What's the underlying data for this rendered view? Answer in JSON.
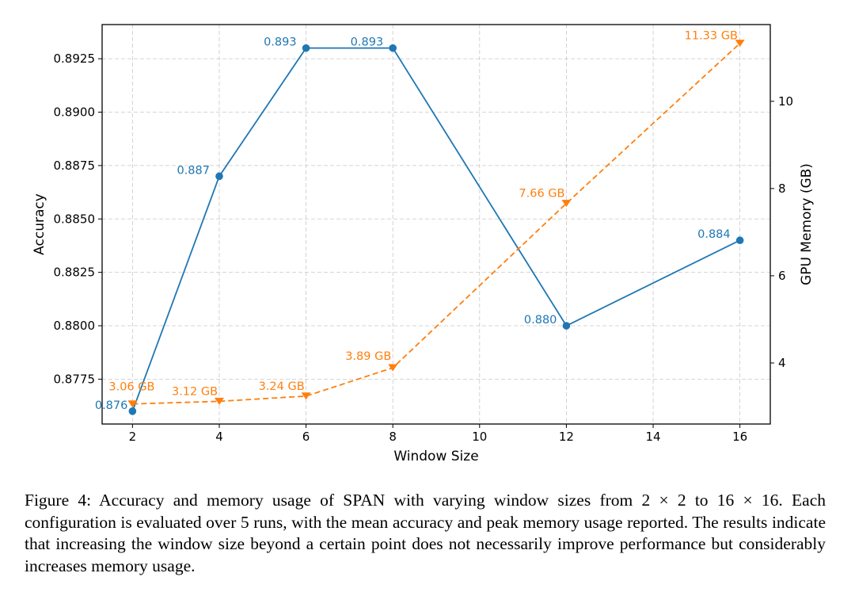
{
  "chart_data": {
    "type": "line",
    "xlabel": "Window Size",
    "ylabel_left": "Accuracy",
    "ylabel_right": "GPU Memory (GB)",
    "grid": true,
    "xlim": [
      1.3,
      16.7
    ],
    "ylim_left": [
      0.8754,
      0.8941
    ],
    "ylim_right": [
      2.6,
      11.76
    ],
    "x_ticks": [
      2,
      4,
      6,
      8,
      10,
      12,
      14,
      16
    ],
    "y_left_ticks": [
      0.8775,
      0.88,
      0.8825,
      0.885,
      0.8875,
      0.89,
      0.8925
    ],
    "y_left_tick_labels": [
      "0.8775",
      "0.8800",
      "0.8825",
      "0.8850",
      "0.8875",
      "0.8900",
      "0.8925"
    ],
    "y_right_ticks": [
      4,
      6,
      8,
      10
    ],
    "series": [
      {
        "axis": "left",
        "color": "#1f77b4",
        "line_style": "solid",
        "marker": "circle",
        "x": [
          2,
          4,
          6,
          8,
          12,
          16
        ],
        "values": [
          0.876,
          0.887,
          0.893,
          0.893,
          0.88,
          0.884
        ],
        "labels": [
          "0.876",
          "0.887",
          "0.893",
          "0.893",
          "0.880",
          "0.884"
        ]
      },
      {
        "axis": "right",
        "color": "#ff7f0e",
        "line_style": "dashed",
        "marker": "triangle-down",
        "x": [
          2,
          4,
          6,
          8,
          12,
          16
        ],
        "values": [
          3.06,
          3.12,
          3.24,
          3.89,
          7.66,
          11.33
        ],
        "labels": [
          "3.06 GB",
          "3.12 GB",
          "3.24 GB",
          "3.89 GB",
          "7.66 GB",
          "11.33 GB"
        ]
      }
    ]
  },
  "caption": {
    "text": "Figure 4: Accuracy and memory usage of SPAN with varying window sizes from 2 × 2 to 16 × 16. Each configuration is evaluated over 5 runs, with the mean accuracy and peak memory usage reported. The results indicate that increasing the window size beyond a certain point does not necessarily improve performance but considerably increases memory usage."
  }
}
